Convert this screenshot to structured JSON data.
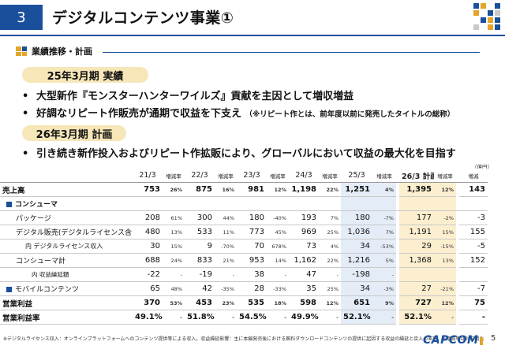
{
  "header": {
    "section_number": "3",
    "title": "デジタルコンテンツ事業①",
    "accent_color": "#1a4f9c",
    "mosaic_colors": [
      "#1a4f9c",
      "#e3a52a",
      "#ffffff",
      "#1a4f9c",
      "#e3a52a",
      "#ffffff",
      "#1a4f9c",
      "#c9c9c9",
      "#ffffff",
      "#1a4f9c",
      "#e3a52a",
      "#1a4f9c",
      "#c9c9c9",
      "#ffffff",
      "#e3a52a",
      "#1a4f9c"
    ]
  },
  "subtitle": "業績推移・計画",
  "fy25": {
    "label": "25年3月期 実績",
    "bullets": [
      {
        "text": "大型新作『モンスターハンターワイルズ』貢献を主因として増収増益",
        "note": ""
      },
      {
        "text": "好調なリピート作販売が通期で収益を下支え",
        "note": "（※リピート作とは、前年度以前に発売したタイトルの総称）"
      }
    ]
  },
  "fy26": {
    "label": "26年3月期 計画",
    "bullets": [
      {
        "text": "引き続き新作投入およびリピート作拡販により、グローバルにおいて収益の最大化を目指す",
        "note": ""
      }
    ]
  },
  "table": {
    "unit": "（億円）",
    "headers": {
      "y21": "21/3",
      "y22": "22/3",
      "y23": "23/3",
      "y24": "24/3",
      "y25": "25/3",
      "y26": "26/3 計画",
      "rate": "増減率",
      "diff": "増減"
    },
    "rows": [
      {
        "label": "売上高",
        "v": [
          "753",
          "26%",
          "875",
          "16%",
          "981",
          "12%",
          "1,198",
          "22%",
          "1,251",
          "4%",
          "1,395",
          "12%",
          "143"
        ]
      },
      {
        "label": "コンシューマ",
        "v": [
          "",
          "",
          "",
          "",
          "",
          "",
          "",
          "",
          "",
          "",
          "",
          "",
          ""
        ]
      },
      {
        "label": "パッケージ",
        "v": [
          "208",
          "61%",
          "300",
          "44%",
          "180",
          "-40%",
          "193",
          "7%",
          "180",
          "-7%",
          "177",
          "-2%",
          "-3"
        ]
      },
      {
        "label": "デジタル販売(デジタルライセンス含む)",
        "v": [
          "480",
          "13%",
          "533",
          "11%",
          "773",
          "45%",
          "969",
          "25%",
          "1,036",
          "7%",
          "1,191",
          "15%",
          "155"
        ]
      },
      {
        "label": "内 デジタルライセンス収入",
        "v": [
          "30",
          "15%",
          "9",
          "-70%",
          "70",
          "678%",
          "73",
          "4%",
          "34",
          "-53%",
          "29",
          "-15%",
          "-5"
        ]
      },
      {
        "label": "コンシューマ計",
        "v": [
          "688",
          "24%",
          "833",
          "21%",
          "953",
          "14%",
          "1,162",
          "22%",
          "1,216",
          "5%",
          "1,368",
          "13%",
          "152"
        ]
      },
      {
        "label": "内 収益繰延額",
        "v": [
          "-22",
          "-",
          "-19",
          "-",
          "38",
          "-",
          "47",
          "-",
          "-198",
          "-",
          "",
          "",
          ""
        ]
      },
      {
        "label": "モバイルコンテンツ",
        "v": [
          "65",
          "48%",
          "42",
          "-35%",
          "28",
          "-33%",
          "35",
          "25%",
          "34",
          "-3%",
          "27",
          "-21%",
          "-7"
        ]
      },
      {
        "label": "営業利益",
        "v": [
          "370",
          "53%",
          "453",
          "23%",
          "535",
          "18%",
          "598",
          "12%",
          "651",
          "9%",
          "727",
          "12%",
          "75"
        ]
      },
      {
        "label": "営業利益率",
        "v": [
          "49.1%",
          "-",
          "51.8%",
          "-",
          "54.5%",
          "-",
          "49.9%",
          "-",
          "52.1%",
          "-",
          "52.1%",
          "-",
          "-"
        ]
      }
    ]
  },
  "footnote": "※デジタルライセンス収入：オンラインプラットフォームへのコンテンツ提供等による収入。収益繰延影響：主に本編発売後における無料ダウンロードコンテンツの提供に起因する収益の繰延と戻入の差額。※増減率は対前期比",
  "logo": "CAPCOM",
  "page_number": "5"
}
